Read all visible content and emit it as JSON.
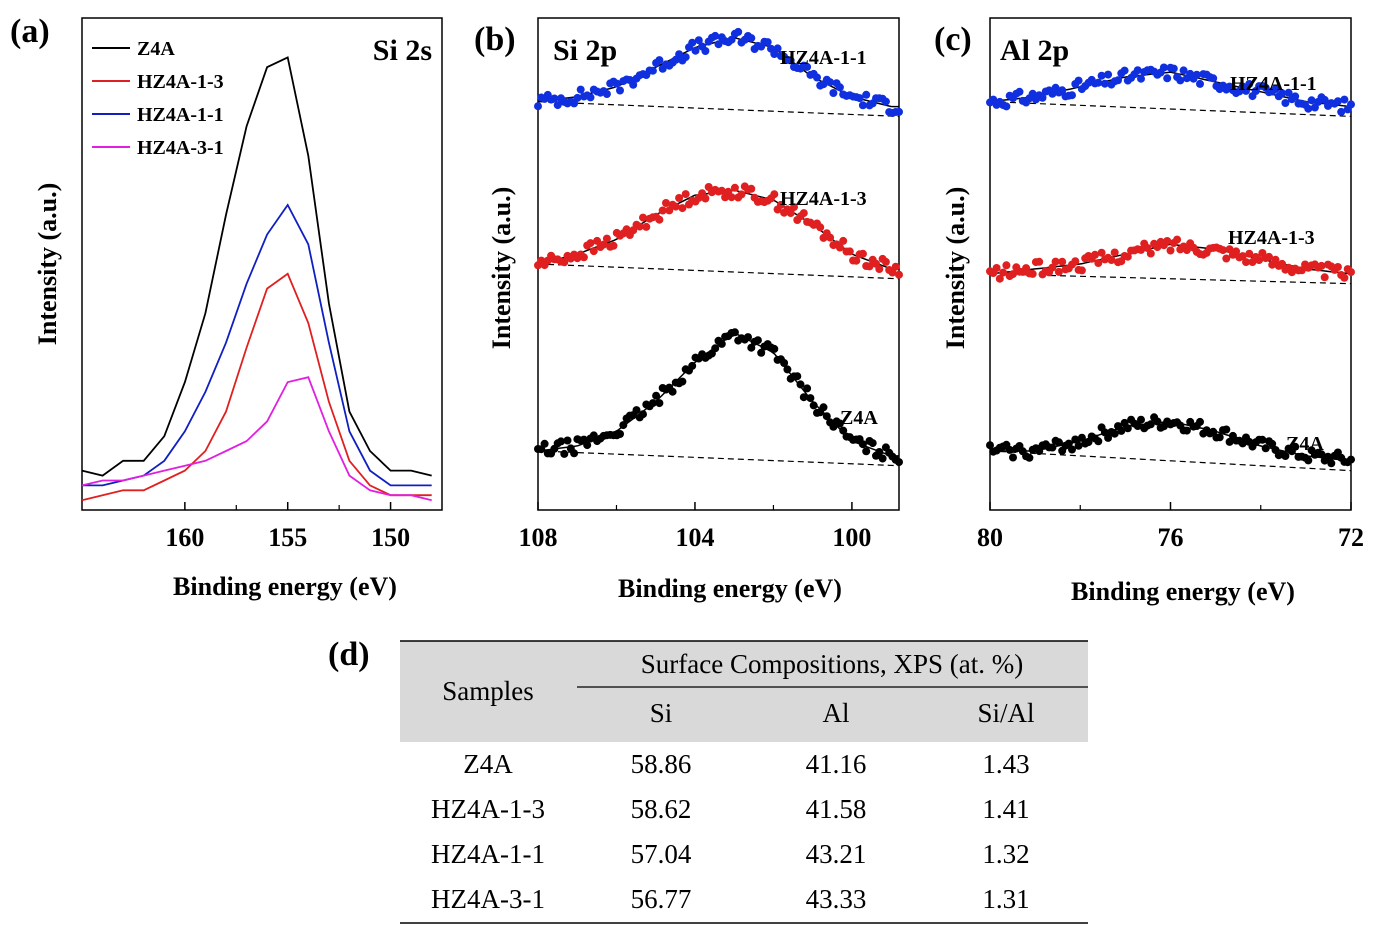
{
  "chart_data": [
    {
      "panel": "(a)",
      "type": "line",
      "region_label": "Si 2s",
      "xlabel": "Binding energy (eV)",
      "ylabel": "Intensity (a.u.)",
      "xlim": [
        165,
        147.5
      ],
      "ylim": [
        0,
        1
      ],
      "x_reversed": true,
      "x_ticks": [
        160,
        155,
        150
      ],
      "y_ticks_shown": false,
      "legend_position": "top-left",
      "legend": [
        "Z4A",
        "HZ4A-1-3",
        "HZ4A-1-1",
        "HZ4A-3-1"
      ],
      "series": [
        {
          "name": "Z4A",
          "color": "#000000",
          "x": [
            165,
            164,
            163,
            162,
            161,
            160,
            159,
            158,
            157,
            156,
            155,
            154,
            153,
            152,
            151,
            150,
            149,
            148
          ],
          "y": [
            0.08,
            0.07,
            0.1,
            0.1,
            0.15,
            0.26,
            0.4,
            0.6,
            0.78,
            0.9,
            0.92,
            0.72,
            0.42,
            0.2,
            0.12,
            0.08,
            0.08,
            0.07
          ]
        },
        {
          "name": "HZ4A-1-3",
          "color": "#e02020",
          "x": [
            165,
            164,
            163,
            162,
            161,
            160,
            159,
            158,
            157,
            156,
            155,
            154,
            153,
            152,
            151,
            150,
            149,
            148
          ],
          "y": [
            0.02,
            0.03,
            0.04,
            0.04,
            0.06,
            0.08,
            0.12,
            0.2,
            0.33,
            0.45,
            0.48,
            0.38,
            0.22,
            0.1,
            0.05,
            0.03,
            0.03,
            0.03
          ]
        },
        {
          "name": "HZ4A-1-1",
          "color": "#1020c0",
          "x": [
            165,
            164,
            163,
            162,
            161,
            160,
            159,
            158,
            157,
            156,
            155,
            154,
            153,
            152,
            151,
            150,
            149,
            148
          ],
          "y": [
            0.05,
            0.05,
            0.06,
            0.07,
            0.1,
            0.16,
            0.24,
            0.34,
            0.46,
            0.56,
            0.62,
            0.54,
            0.34,
            0.16,
            0.08,
            0.05,
            0.05,
            0.05
          ]
        },
        {
          "name": "HZ4A-3-1",
          "color": "#e020e0",
          "x": [
            165,
            164,
            163,
            162,
            161,
            160,
            159,
            158,
            157,
            156,
            155,
            154,
            153,
            152,
            151,
            150,
            149,
            148
          ],
          "y": [
            0.05,
            0.06,
            0.06,
            0.07,
            0.08,
            0.09,
            0.1,
            0.12,
            0.14,
            0.18,
            0.26,
            0.27,
            0.16,
            0.07,
            0.04,
            0.03,
            0.03,
            0.02
          ]
        }
      ]
    },
    {
      "panel": "(b)",
      "type": "scatter",
      "region_label": "Si 2p",
      "xlabel": "Binding energy (eV)",
      "ylabel": "Intensity (a.u.)",
      "xlim": [
        108,
        98.8
      ],
      "ylim": [
        0,
        1
      ],
      "x_reversed": true,
      "x_ticks": [
        108,
        104,
        100
      ],
      "y_ticks_shown": false,
      "series": [
        {
          "name": "HZ4A-1-1",
          "color": "#1030e0",
          "offset": 0.82,
          "x": [
            108,
            107,
            106,
            105,
            104,
            103,
            102,
            101,
            100,
            99
          ],
          "y": [
            0.01,
            0.02,
            0.04,
            0.08,
            0.12,
            0.14,
            0.12,
            0.06,
            0.02,
            0.0
          ]
        },
        {
          "name": "HZ4A-1-3",
          "color": "#e02020",
          "offset": 0.48,
          "x": [
            108,
            107,
            106,
            105,
            104,
            103,
            102,
            101,
            100,
            99
          ],
          "y": [
            0.02,
            0.04,
            0.07,
            0.12,
            0.16,
            0.17,
            0.15,
            0.1,
            0.04,
            0.01
          ]
        },
        {
          "name": "Z4A",
          "color": "#000000",
          "offset": 0.1,
          "x": [
            108,
            107,
            106,
            105,
            104,
            103,
            102,
            101,
            100,
            99
          ],
          "y": [
            0.02,
            0.03,
            0.06,
            0.12,
            0.2,
            0.26,
            0.22,
            0.12,
            0.04,
            0.01
          ]
        }
      ]
    },
    {
      "panel": "(c)",
      "type": "scatter",
      "region_label": "Al 2p",
      "xlabel": "Binding energy (eV)",
      "ylabel": "Intensity (a.u.)",
      "xlim": [
        80,
        72
      ],
      "ylim": [
        0,
        1
      ],
      "x_reversed": true,
      "x_ticks": [
        80,
        76,
        72
      ],
      "y_ticks_shown": false,
      "series": [
        {
          "name": "HZ4A-1-1",
          "color": "#1030e0",
          "offset": 0.82,
          "x": [
            80,
            79,
            78,
            77,
            76,
            75,
            74,
            73,
            72
          ],
          "y": [
            0.01,
            0.02,
            0.04,
            0.06,
            0.07,
            0.05,
            0.03,
            0.01,
            0.0
          ]
        },
        {
          "name": "HZ4A-1-3",
          "color": "#e02020",
          "offset": 0.48,
          "x": [
            80,
            79,
            78,
            77,
            76,
            75,
            74,
            73,
            72
          ],
          "y": [
            0.0,
            0.01,
            0.02,
            0.04,
            0.06,
            0.05,
            0.03,
            0.01,
            0.0
          ]
        },
        {
          "name": "Z4A",
          "color": "#000000",
          "offset": 0.1,
          "x": [
            80,
            79,
            78,
            77,
            76,
            75,
            74,
            73,
            72
          ],
          "y": [
            0.02,
            0.02,
            0.04,
            0.07,
            0.08,
            0.06,
            0.03,
            0.01,
            0.0
          ]
        }
      ]
    },
    {
      "panel": "(d)",
      "type": "table",
      "header_top": "Surface Compositions, XPS (at. %)",
      "row_header": "Samples",
      "columns": [
        "Si",
        "Al",
        "Si/Al"
      ],
      "rows": [
        {
          "sample": "Z4A",
          "values": [
            "58.86",
            "41.16",
            "1.43"
          ]
        },
        {
          "sample": "HZ4A-1-3",
          "values": [
            "58.62",
            "41.58",
            "1.41"
          ]
        },
        {
          "sample": "HZ4A-1-1",
          "values": [
            "57.04",
            "43.21",
            "1.32"
          ]
        },
        {
          "sample": "HZ4A-3-1",
          "values": [
            "56.77",
            "43.33",
            "1.31"
          ]
        }
      ]
    }
  ]
}
